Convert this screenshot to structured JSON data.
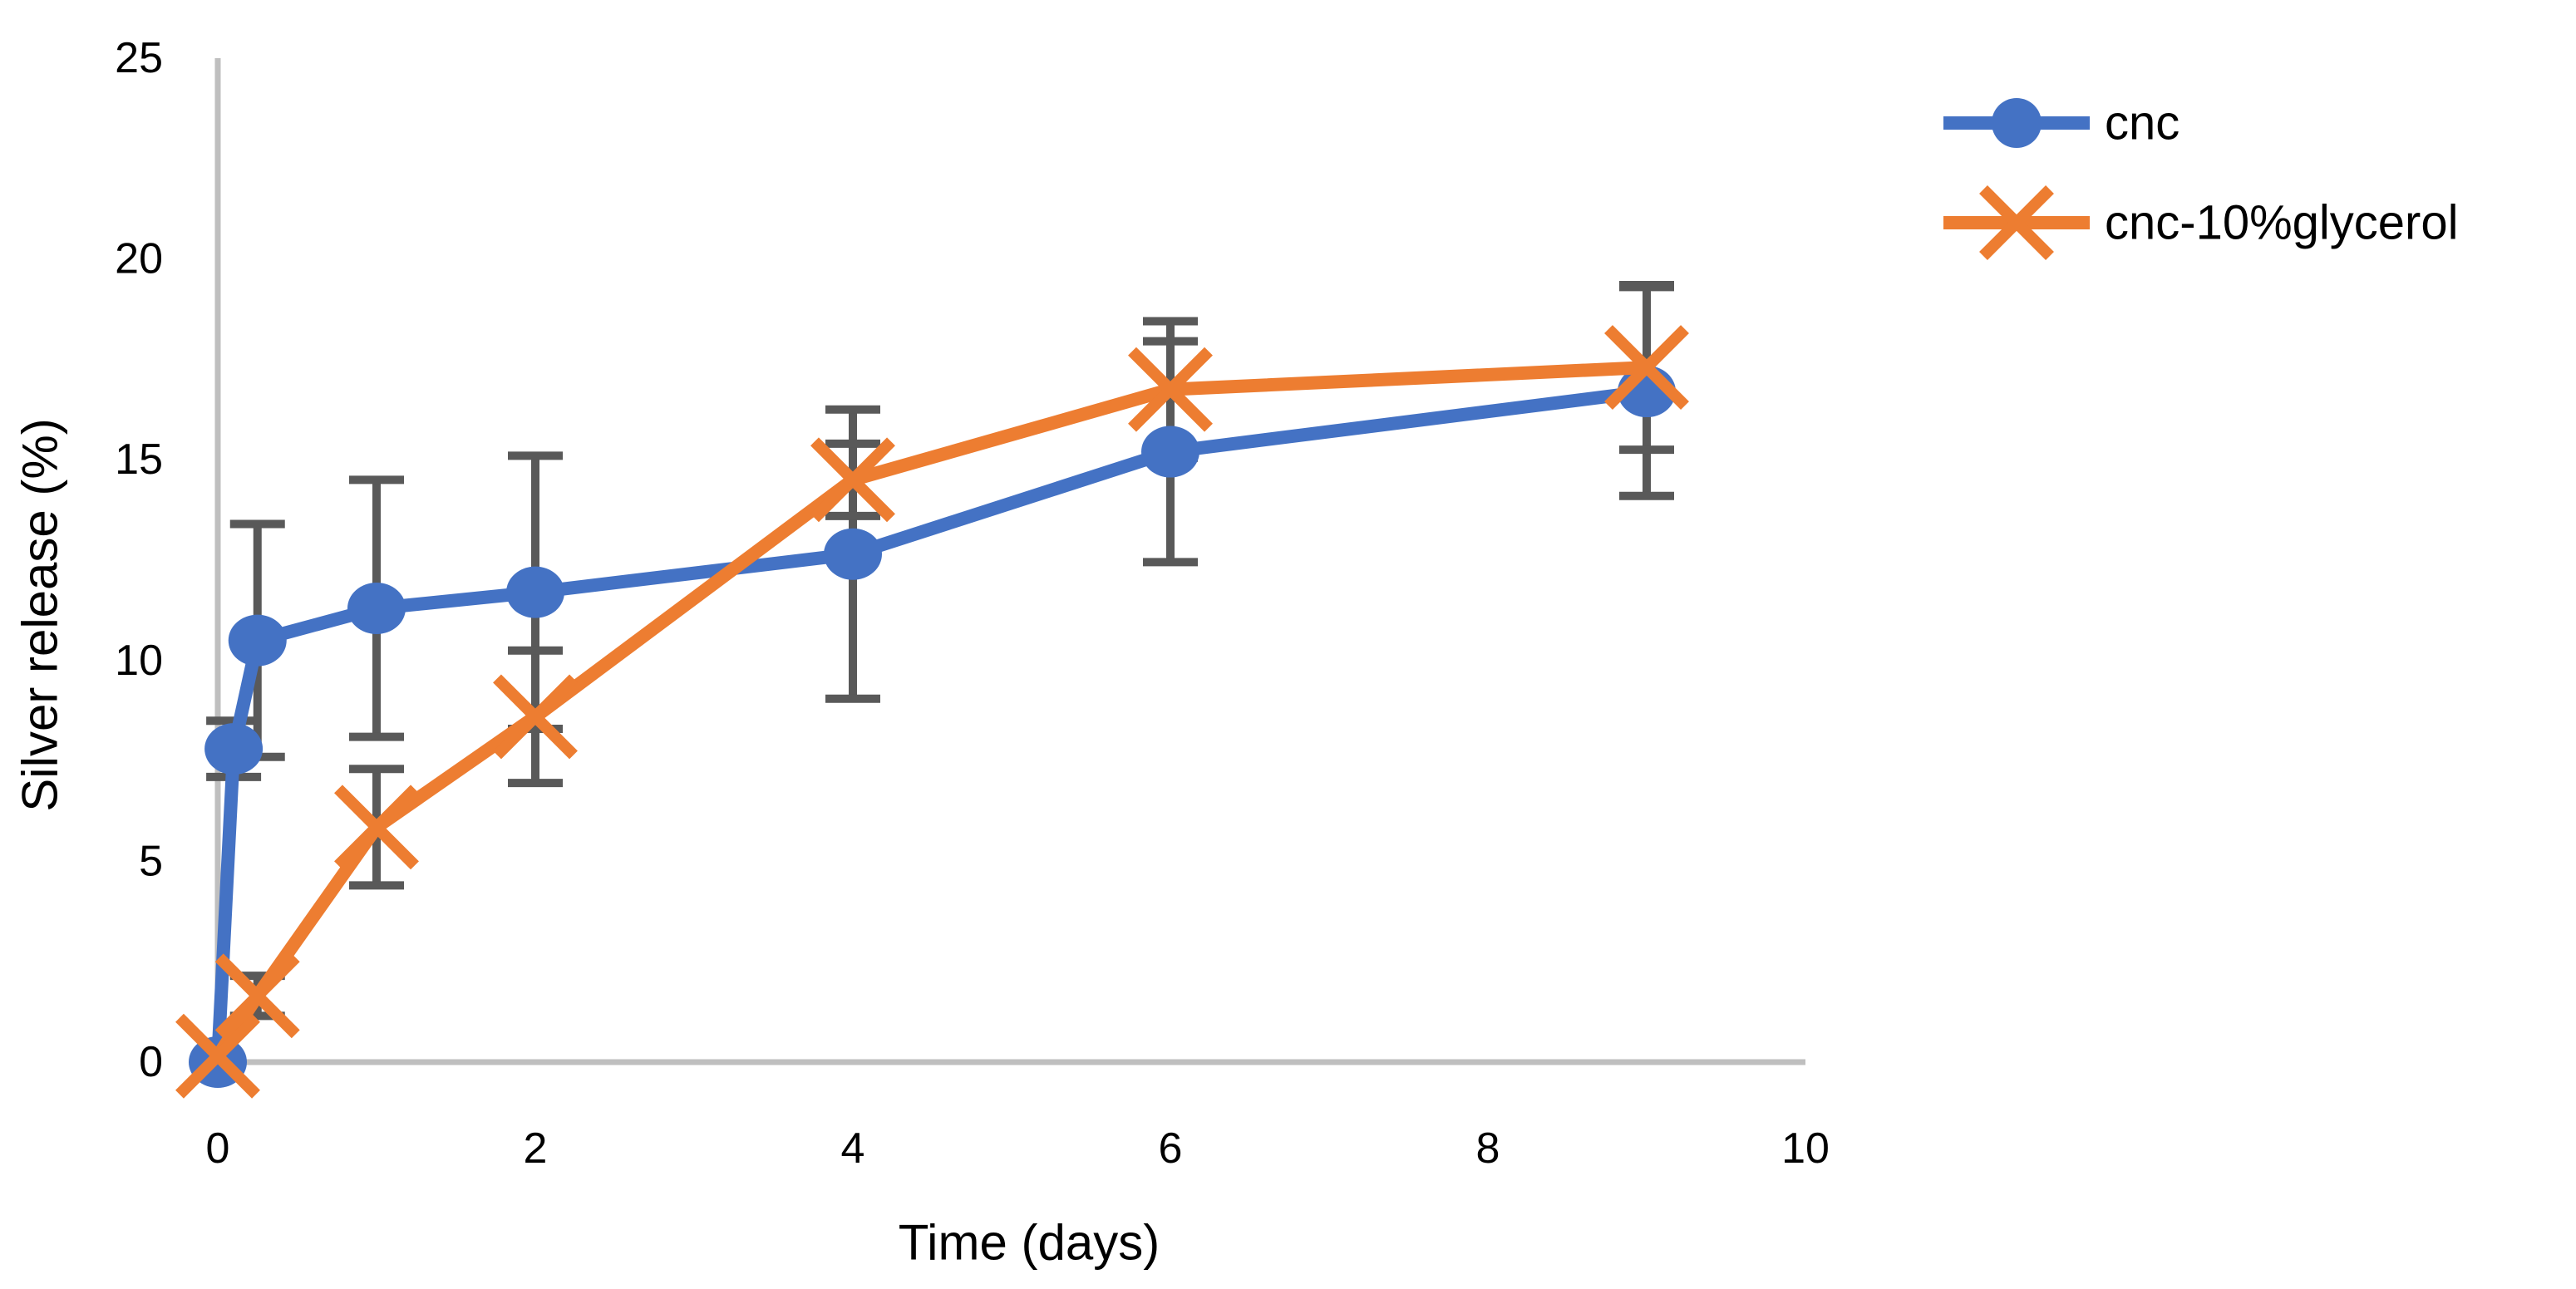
{
  "figure": {
    "background": "#ffffff",
    "text_color": "#000000",
    "axis_line_color": "#bfbfbf",
    "error_bar_color": "#595959"
  },
  "chart_data": {
    "type": "line",
    "title": "",
    "xlabel": "Time (days)",
    "ylabel": "Silver release (%)",
    "xlim": [
      0,
      10
    ],
    "ylim": [
      0,
      25
    ],
    "x_ticks": [
      0,
      2,
      4,
      6,
      8,
      10
    ],
    "y_ticks": [
      0,
      5,
      10,
      15,
      20,
      25
    ],
    "grid": false,
    "legend_position": "top-right",
    "error_bars": true,
    "series": [
      {
        "name": "cnc",
        "color": "#4472C4",
        "marker": "circle",
        "points": [
          {
            "x": 0,
            "y": 0,
            "err": null
          },
          {
            "x": 0.1,
            "y": 7.8,
            "err": 0.7
          },
          {
            "x": 0.25,
            "y": 10.5,
            "err": 2.9
          },
          {
            "x": 1,
            "y": 11.3,
            "err": 3.2
          },
          {
            "x": 2,
            "y": 11.7,
            "err": 3.4
          },
          {
            "x": 4,
            "y": 12.65,
            "err": 3.6
          },
          {
            "x": 6,
            "y": 15.2,
            "err": 2.75
          },
          {
            "x": 9,
            "y": 16.7,
            "err": 2.6
          }
        ]
      },
      {
        "name": "cnc-10%glycerol",
        "color": "#ED7D31",
        "marker": "x",
        "points": [
          {
            "x": 0,
            "y": 0.15,
            "err": null
          },
          {
            "x": 0.25,
            "y": 1.65,
            "err": 0.5
          },
          {
            "x": 1,
            "y": 5.85,
            "err": 1.45
          },
          {
            "x": 2,
            "y": 8.6,
            "err": 1.65
          },
          {
            "x": 4,
            "y": 14.5,
            "err": 0.9
          },
          {
            "x": 6,
            "y": 16.75,
            "err": 1.7
          },
          {
            "x": 9,
            "y": 17.3,
            "err": 2.05
          }
        ]
      }
    ]
  }
}
